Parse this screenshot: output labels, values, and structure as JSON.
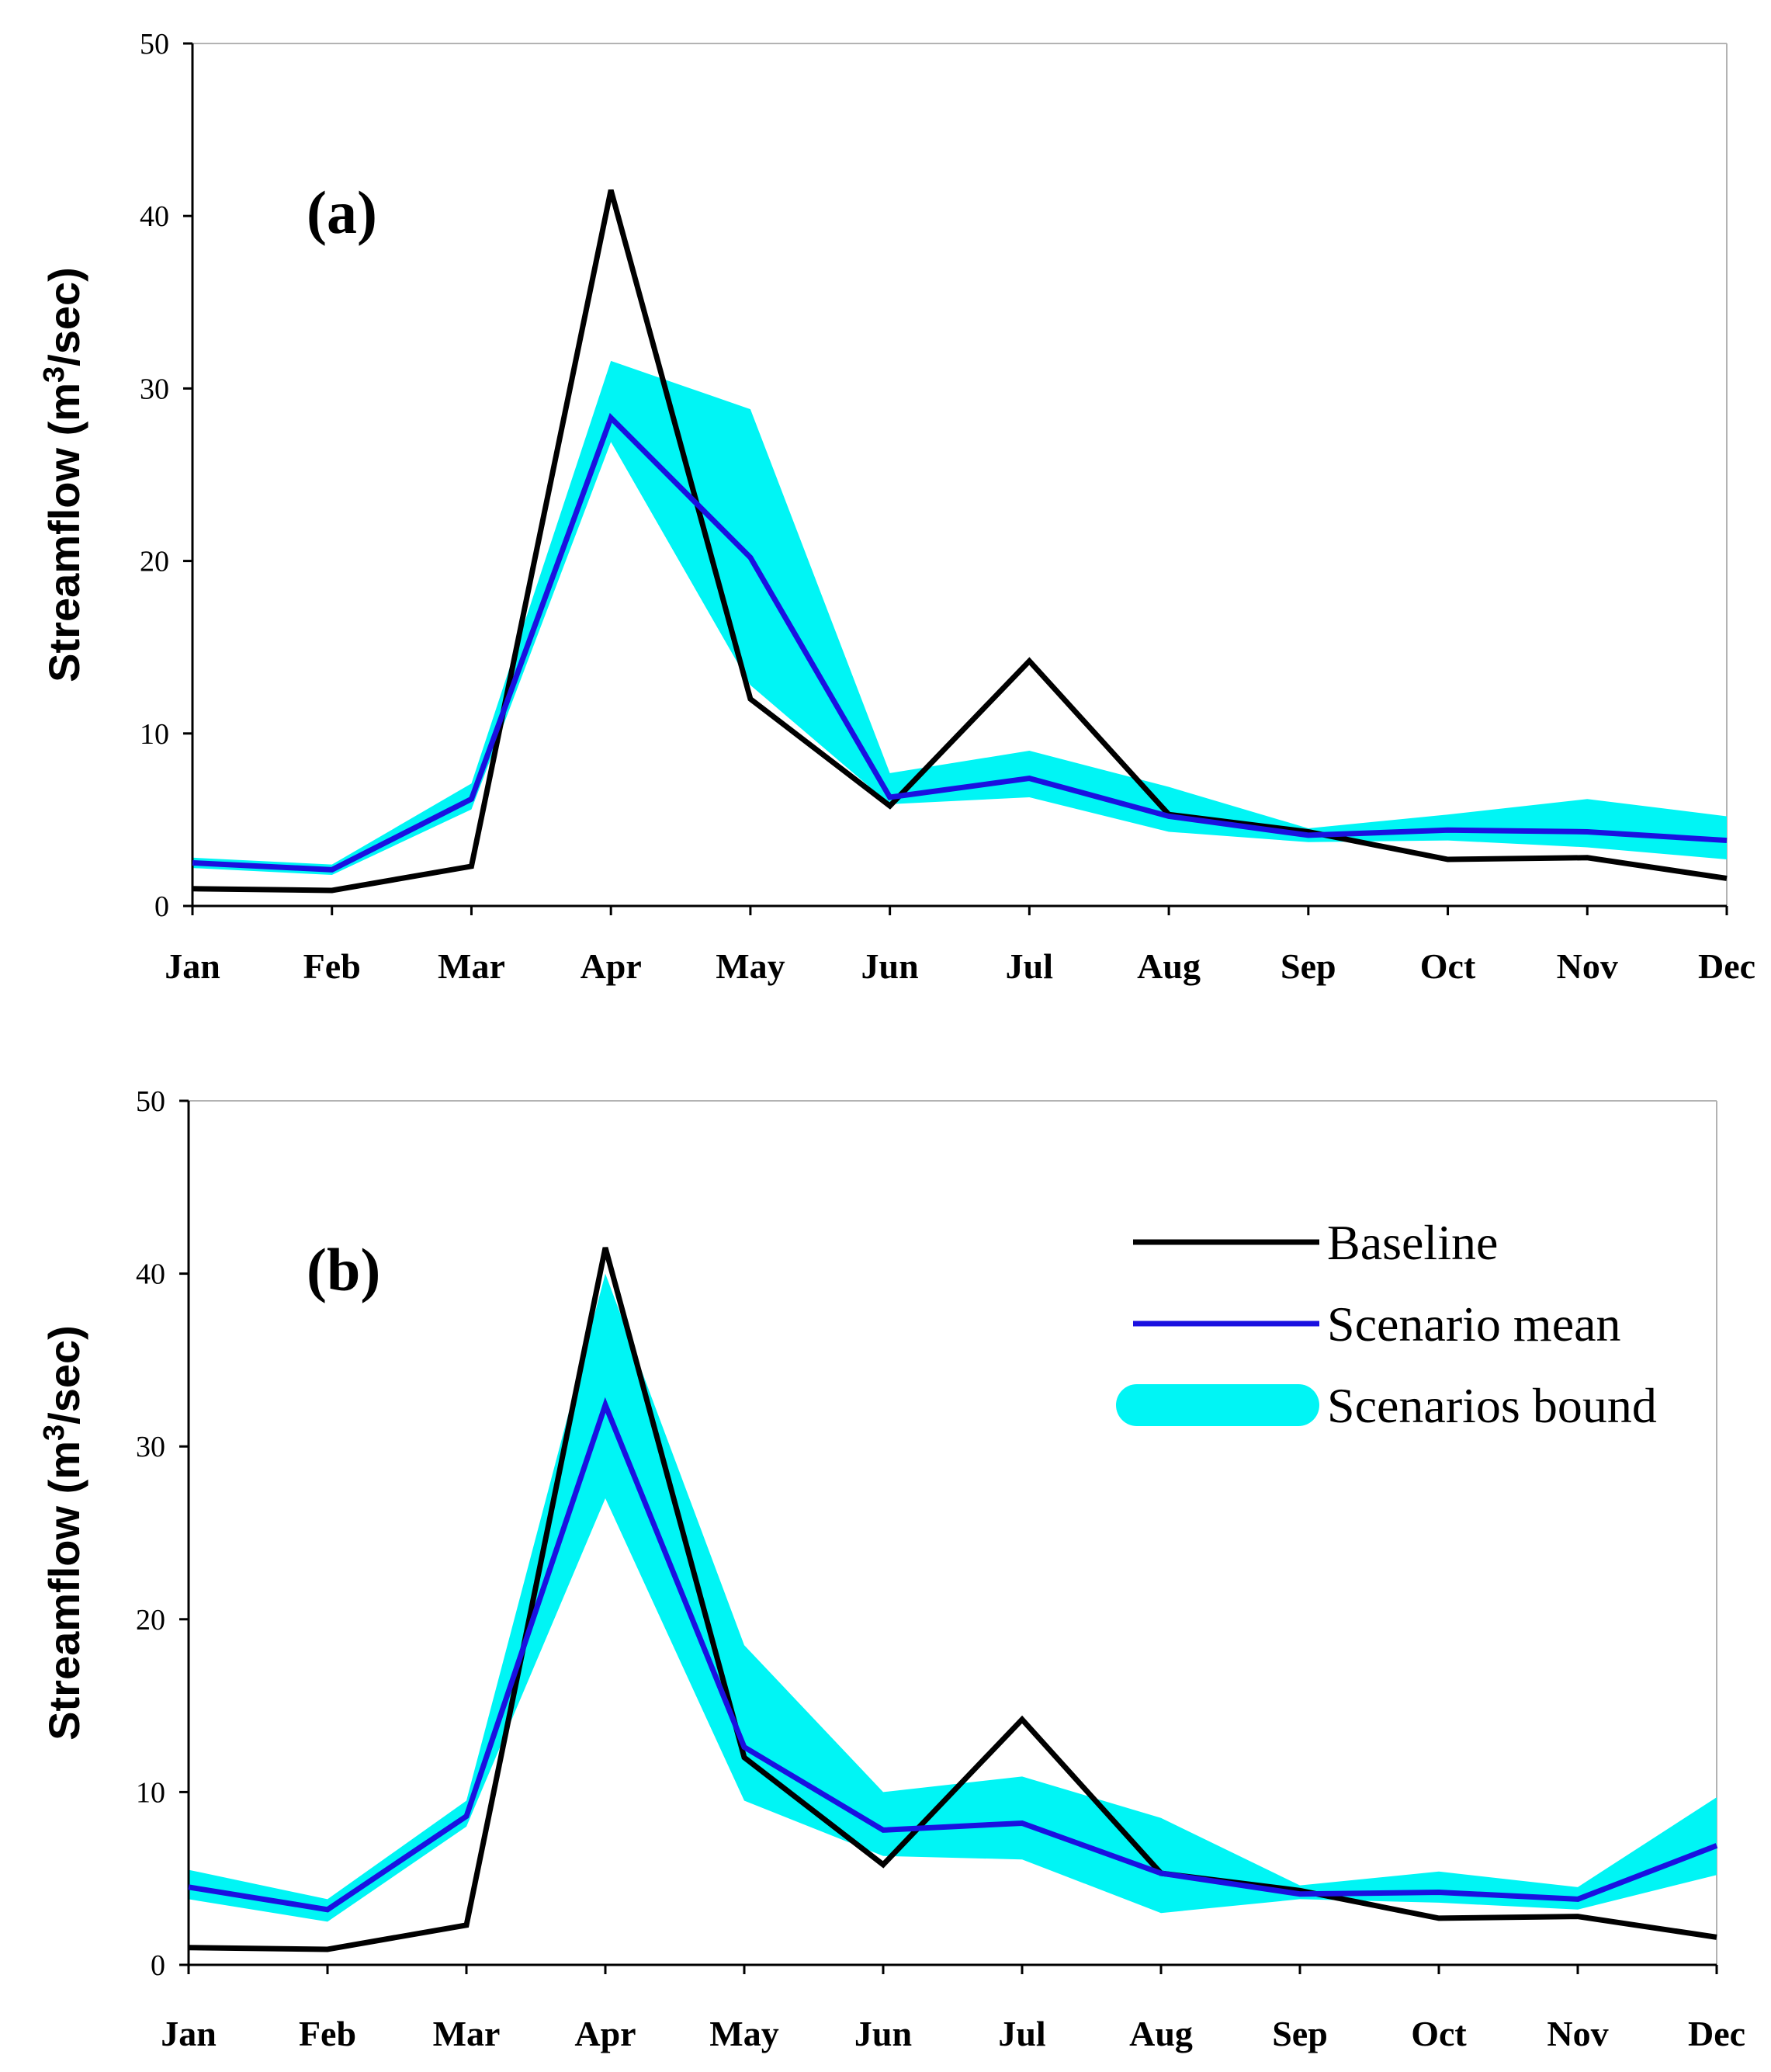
{
  "chart_data": [
    {
      "type": "line",
      "panel_label": "(a)",
      "ylabel": {
        "main": "Streamflow (m",
        "sup": "3",
        "tail": "/sec)"
      },
      "categories": [
        "Jan",
        "Feb",
        "Mar",
        "Apr",
        "May",
        "Jun",
        "Jul",
        "Aug",
        "Sep",
        "Oct",
        "Nov",
        "Dec"
      ],
      "ylim": [
        0,
        50
      ],
      "yticks": [
        "0",
        "10",
        "20",
        "30",
        "40",
        "50"
      ],
      "series": [
        {
          "name": "Baseline",
          "color": "#000000",
          "values": [
            1.0,
            0.9,
            2.3,
            41.5,
            12.0,
            5.8,
            14.2,
            5.3,
            4.3,
            2.7,
            2.8,
            1.6
          ]
        },
        {
          "name": "Scenario mean",
          "color": "#1a10e0",
          "values": [
            2.5,
            2.1,
            6.2,
            28.3,
            20.2,
            6.3,
            7.4,
            5.2,
            4.1,
            4.4,
            4.3,
            3.8
          ]
        }
      ],
      "band": {
        "name": "Scenarios bound",
        "color": "#00f5f5",
        "lower": [
          2.2,
          1.8,
          5.6,
          26.9,
          12.8,
          5.9,
          6.3,
          4.3,
          3.7,
          3.8,
          3.4,
          2.7
        ],
        "upper": [
          2.8,
          2.4,
          7.1,
          31.6,
          28.8,
          7.7,
          9.0,
          6.9,
          4.5,
          5.3,
          6.2,
          5.2
        ]
      },
      "legend": false
    },
    {
      "type": "line",
      "panel_label": "(b)",
      "ylabel": {
        "main": "Streamflow (m",
        "sup": "3",
        "tail": "/sec)"
      },
      "categories": [
        "Jan",
        "Feb",
        "Mar",
        "Apr",
        "May",
        "Jun",
        "Jul",
        "Aug",
        "Sep",
        "Oct",
        "Nov",
        "Dec"
      ],
      "ylim": [
        0,
        50
      ],
      "yticks": [
        "0",
        "10",
        "20",
        "30",
        "40",
        "50"
      ],
      "series": [
        {
          "name": "Baseline",
          "color": "#000000",
          "values": [
            1.0,
            0.9,
            2.3,
            41.5,
            12.0,
            5.8,
            14.2,
            5.3,
            4.3,
            2.7,
            2.8,
            1.6
          ]
        },
        {
          "name": "Scenario mean",
          "color": "#1a10e0",
          "values": [
            4.5,
            3.2,
            8.6,
            32.4,
            12.6,
            7.8,
            8.2,
            5.3,
            4.1,
            4.2,
            3.8,
            6.9
          ]
        }
      ],
      "band": {
        "name": "Scenarios bound",
        "color": "#00f5f5",
        "lower": [
          3.8,
          2.5,
          8.0,
          27.0,
          9.5,
          6.3,
          6.1,
          3.0,
          3.8,
          3.6,
          3.2,
          5.2
        ],
        "upper": [
          5.5,
          3.8,
          9.5,
          40.0,
          18.5,
          10.0,
          10.9,
          8.5,
          4.6,
          5.4,
          4.5,
          9.7
        ]
      },
      "legend": true,
      "legend_position": "top-right"
    }
  ]
}
